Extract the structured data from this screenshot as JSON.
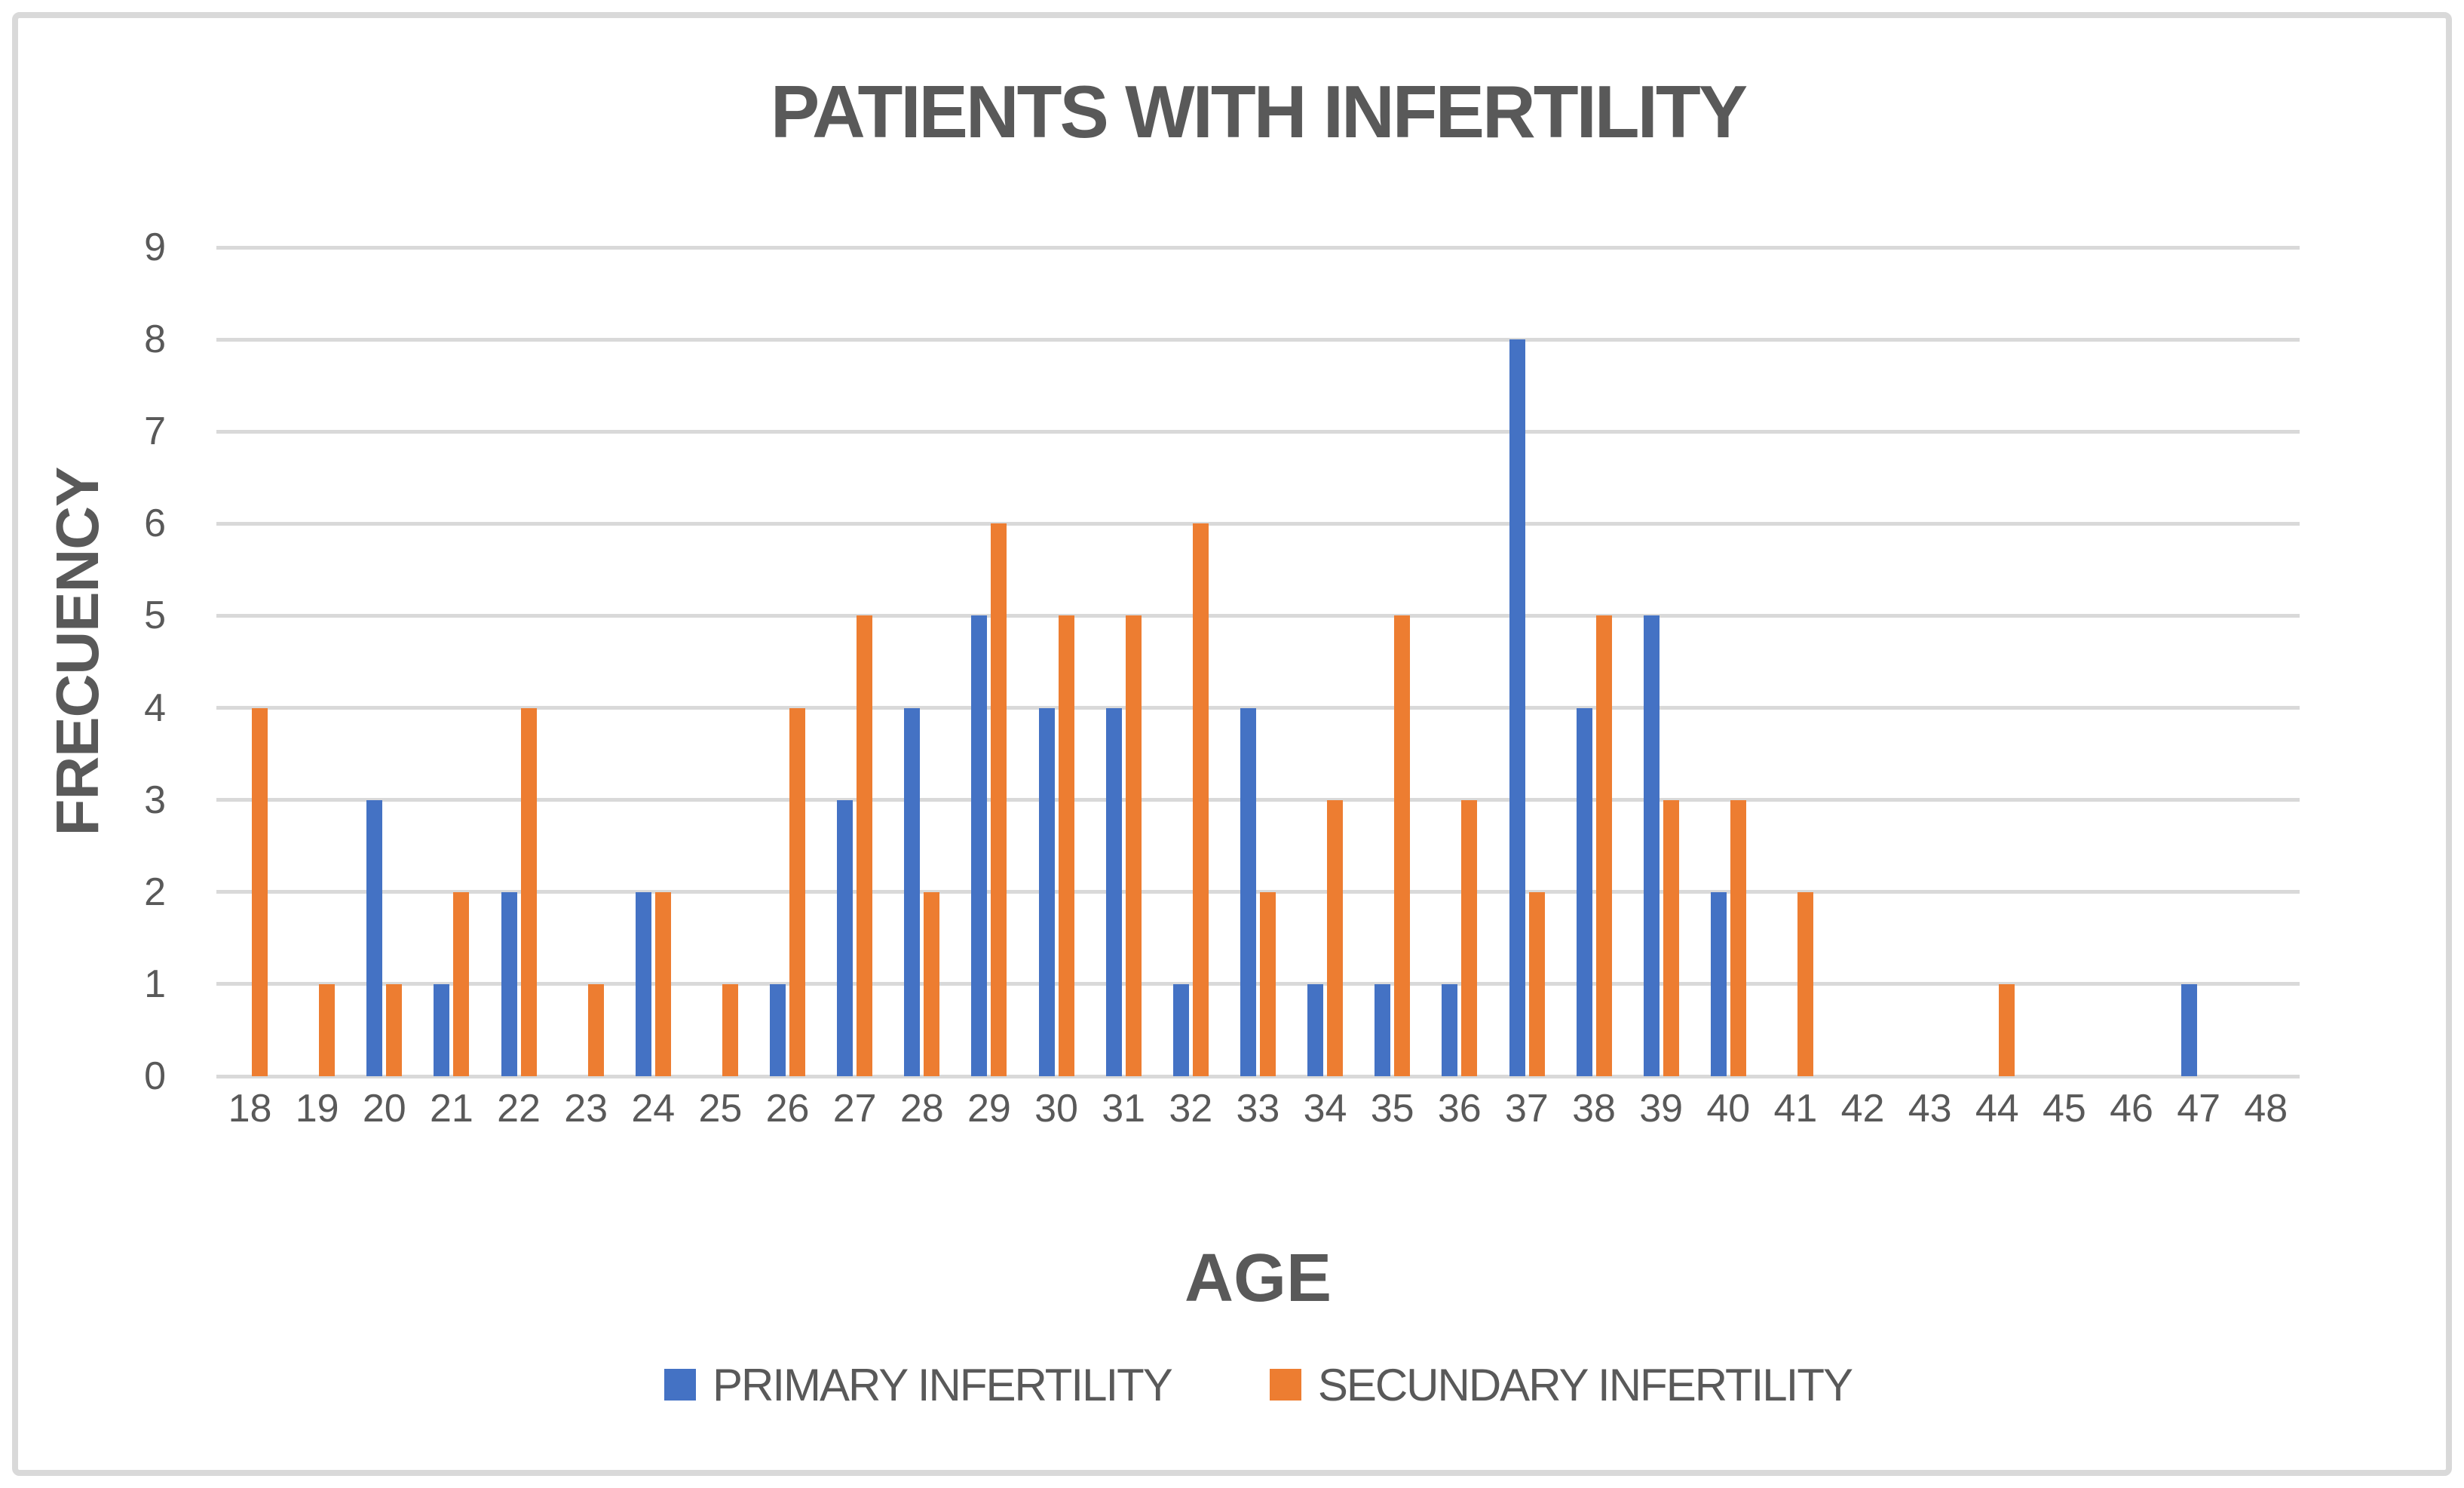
{
  "window": {
    "background": "#FFFFFF",
    "border_color": "#D9D9D9"
  },
  "header": {
    "title": "PATIENTS WITH INFERTILITY"
  },
  "axes": {
    "x_title": "AGE",
    "y_title": "FRECUENCY"
  },
  "legend": {
    "items": [
      {
        "label": "PRIMARY INFERTILITY",
        "color": "#4472C4"
      },
      {
        "label": "SECUNDARY INFERTILITY",
        "color": "#ED7D31"
      }
    ]
  },
  "colors": {
    "text": "#595959",
    "grid": "#D9D9D9",
    "primary_series": "#4472C4",
    "secondary_series": "#ED7D31"
  },
  "chart_data": {
    "type": "bar",
    "title": "PATIENTS WITH INFERTILITY",
    "xlabel": "AGE",
    "ylabel": "FRECUENCY",
    "categories": [
      18,
      19,
      20,
      21,
      22,
      23,
      24,
      25,
      26,
      27,
      28,
      29,
      30,
      31,
      32,
      33,
      34,
      35,
      36,
      37,
      38,
      39,
      40,
      41,
      42,
      43,
      44,
      45,
      46,
      47,
      48
    ],
    "series": [
      {
        "name": "PRIMARY INFERTILITY",
        "color": "#4472C4",
        "values": [
          0,
          0,
          3,
          1,
          2,
          0,
          2,
          0,
          1,
          3,
          4,
          5,
          4,
          4,
          1,
          4,
          1,
          1,
          1,
          8,
          4,
          5,
          2,
          0,
          0,
          0,
          0,
          0,
          0,
          1,
          0
        ]
      },
      {
        "name": "SECUNDARY INFERTILITY",
        "color": "#ED7D31",
        "values": [
          4,
          1,
          1,
          2,
          4,
          1,
          2,
          1,
          4,
          5,
          2,
          6,
          5,
          5,
          6,
          2,
          3,
          5,
          3,
          2,
          5,
          3,
          3,
          2,
          0,
          0,
          1,
          0,
          0,
          0,
          0
        ]
      }
    ],
    "ylim": [
      0,
      9
    ],
    "y_ticks": [
      0,
      1,
      2,
      3,
      4,
      5,
      6,
      7,
      8,
      9
    ],
    "grid": true,
    "legend_position": "bottom"
  }
}
